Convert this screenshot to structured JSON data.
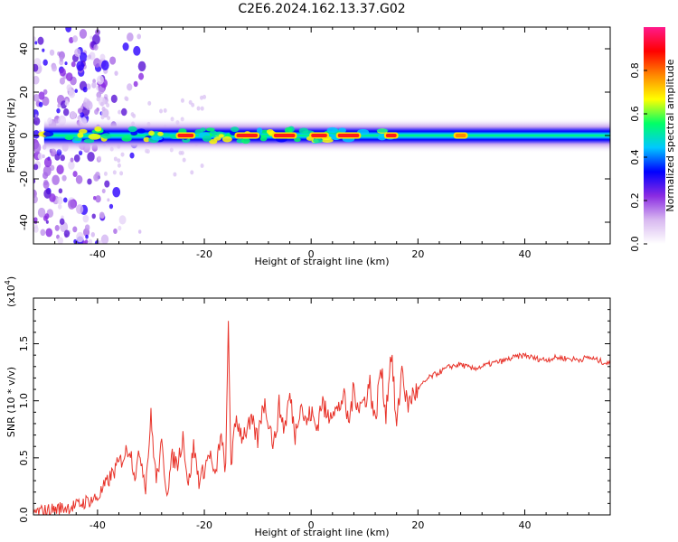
{
  "title": "C2E6.2024.162.13.37.G02",
  "chart_data": [
    {
      "type": "heatmap",
      "xlabel": "Height of straight line (km)",
      "ylabel": "Frequency (Hz)",
      "xlim": [
        -52,
        56
      ],
      "ylim": [
        -50,
        50
      ],
      "xticks": [
        -40,
        -20,
        0,
        20,
        40
      ],
      "yticks": [
        -40,
        -20,
        0,
        20,
        40
      ],
      "colorbar": {
        "label": "Normalized spectral amplitude",
        "range": [
          0.0,
          1.0
        ],
        "ticks": [
          "0.0",
          "0.2",
          "0.4",
          "0.6",
          "0.8"
        ],
        "colors": [
          "#ffffff",
          "#d8b8f0",
          "#8a2be2",
          "#0000ff",
          "#00c8ff",
          "#00ff66",
          "#ffff00",
          "#ff8800",
          "#ff0000",
          "#ff1a8c"
        ]
      },
      "peak_bands": [
        {
          "x": [
            -25,
            -22
          ],
          "value": 0.9
        },
        {
          "x": [
            -14,
            -10
          ],
          "value": 0.95
        },
        {
          "x": [
            -7,
            -3
          ],
          "value": 0.95
        },
        {
          "x": [
            0,
            3
          ],
          "value": 0.9
        },
        {
          "x": [
            5,
            9
          ],
          "value": 0.95
        },
        {
          "x": [
            14,
            16
          ],
          "value": 0.85
        },
        {
          "x": [
            27,
            29
          ],
          "value": 0.7
        }
      ]
    },
    {
      "type": "line",
      "xlabel": "Height of straight line (km)",
      "ylabel": "SNR (10 * v/v)",
      "yscale_label": "(x10",
      "yscale_exp": "4",
      "xlim": [
        -52,
        56
      ],
      "ylim": [
        0.0,
        1.9
      ],
      "xticks": [
        -40,
        -20,
        0,
        20,
        40
      ],
      "yticks": [
        "0.0",
        "0.5",
        "1.0",
        "1.5"
      ],
      "color": "#e8332a",
      "series": [
        {
          "x": [
            -52,
            -48,
            -44,
            -42,
            -40,
            -38,
            -36,
            -34,
            -33,
            -32,
            -31,
            -30,
            -29,
            -28,
            -27,
            -26,
            -25,
            -24,
            -23,
            -22,
            -21,
            -20,
            -19,
            -18,
            -17,
            -16,
            -15.5,
            -15,
            -14,
            -13,
            -12,
            -11,
            -10,
            -9,
            -8,
            -7,
            -6,
            -5,
            -4,
            -3,
            -2,
            -1,
            0,
            1,
            2,
            3,
            4,
            5,
            6,
            7,
            8,
            9,
            10,
            11,
            12,
            13,
            14,
            15,
            16,
            17,
            18,
            19,
            20,
            22,
            24,
            26,
            28,
            30,
            32,
            34,
            36,
            38,
            40,
            42,
            44,
            46,
            48,
            50,
            52,
            54,
            56
          ],
          "y": [
            0.02,
            0.05,
            0.08,
            0.12,
            0.15,
            0.3,
            0.45,
            0.6,
            0.35,
            0.55,
            0.25,
            0.85,
            0.3,
            0.6,
            0.2,
            0.5,
            0.45,
            0.7,
            0.25,
            0.6,
            0.3,
            0.4,
            0.55,
            0.3,
            0.7,
            0.4,
            1.65,
            0.45,
            0.85,
            0.7,
            0.75,
            0.8,
            0.65,
            1.0,
            0.85,
            0.6,
            0.95,
            0.75,
            1.05,
            0.7,
            1.0,
            0.8,
            0.9,
            0.75,
            1.0,
            0.85,
            0.95,
            0.9,
            1.05,
            0.8,
            1.1,
            0.95,
            1.0,
            1.15,
            0.8,
            1.3,
            0.9,
            1.45,
            0.75,
            1.3,
            0.95,
            1.05,
            1.1,
            1.2,
            1.25,
            1.3,
            1.32,
            1.28,
            1.3,
            1.33,
            1.35,
            1.38,
            1.4,
            1.37,
            1.36,
            1.38,
            1.37,
            1.36,
            1.38,
            1.35,
            1.32
          ]
        }
      ]
    }
  ]
}
